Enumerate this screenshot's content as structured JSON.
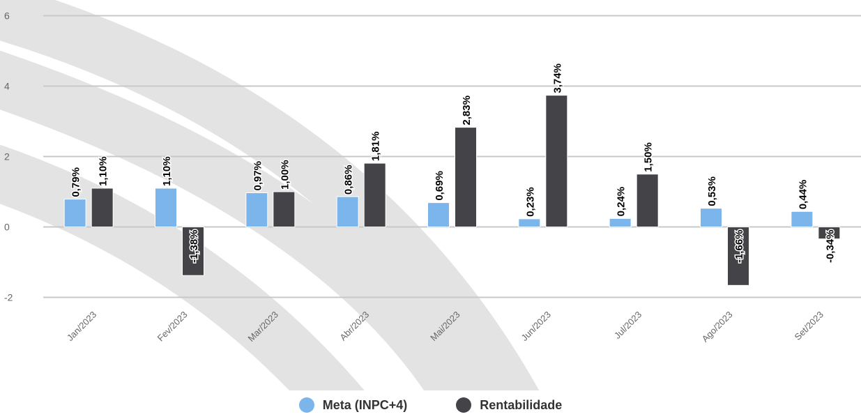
{
  "chart_data": {
    "type": "bar",
    "categories": [
      "Jan/2023",
      "Fev/2023",
      "Mar/2023",
      "Abr/2023",
      "Mai/2023",
      "Jun/2023",
      "Jul/2023",
      "Ago/2023",
      "Set/2023"
    ],
    "series": [
      {
        "name": "Meta (INPC+4)",
        "color": "#7cb5ec",
        "values": [
          0.79,
          1.1,
          0.97,
          0.86,
          0.69,
          0.23,
          0.24,
          0.53,
          0.44
        ],
        "labels": [
          "0,79%",
          "1,10%",
          "0,97%",
          "0,86%",
          "0,69%",
          "0,23%",
          "0,24%",
          "0,53%",
          "0,44%"
        ]
      },
      {
        "name": "Rentabilidade",
        "color": "#434348",
        "values": [
          1.1,
          -1.38,
          1.0,
          1.81,
          2.83,
          3.74,
          1.5,
          -1.66,
          -0.34
        ],
        "labels": [
          "1,10%",
          "-1,38%",
          "1,00%",
          "1,81%",
          "2,83%",
          "3,74%",
          "1,50%",
          "-1,66%",
          "-0,34%"
        ]
      }
    ],
    "yticks": [
      6,
      4,
      2,
      0,
      -2
    ],
    "ylim": [
      -2,
      6
    ],
    "grid": true,
    "legend_position": "bottom-center",
    "x_label_rotation": "angled"
  }
}
